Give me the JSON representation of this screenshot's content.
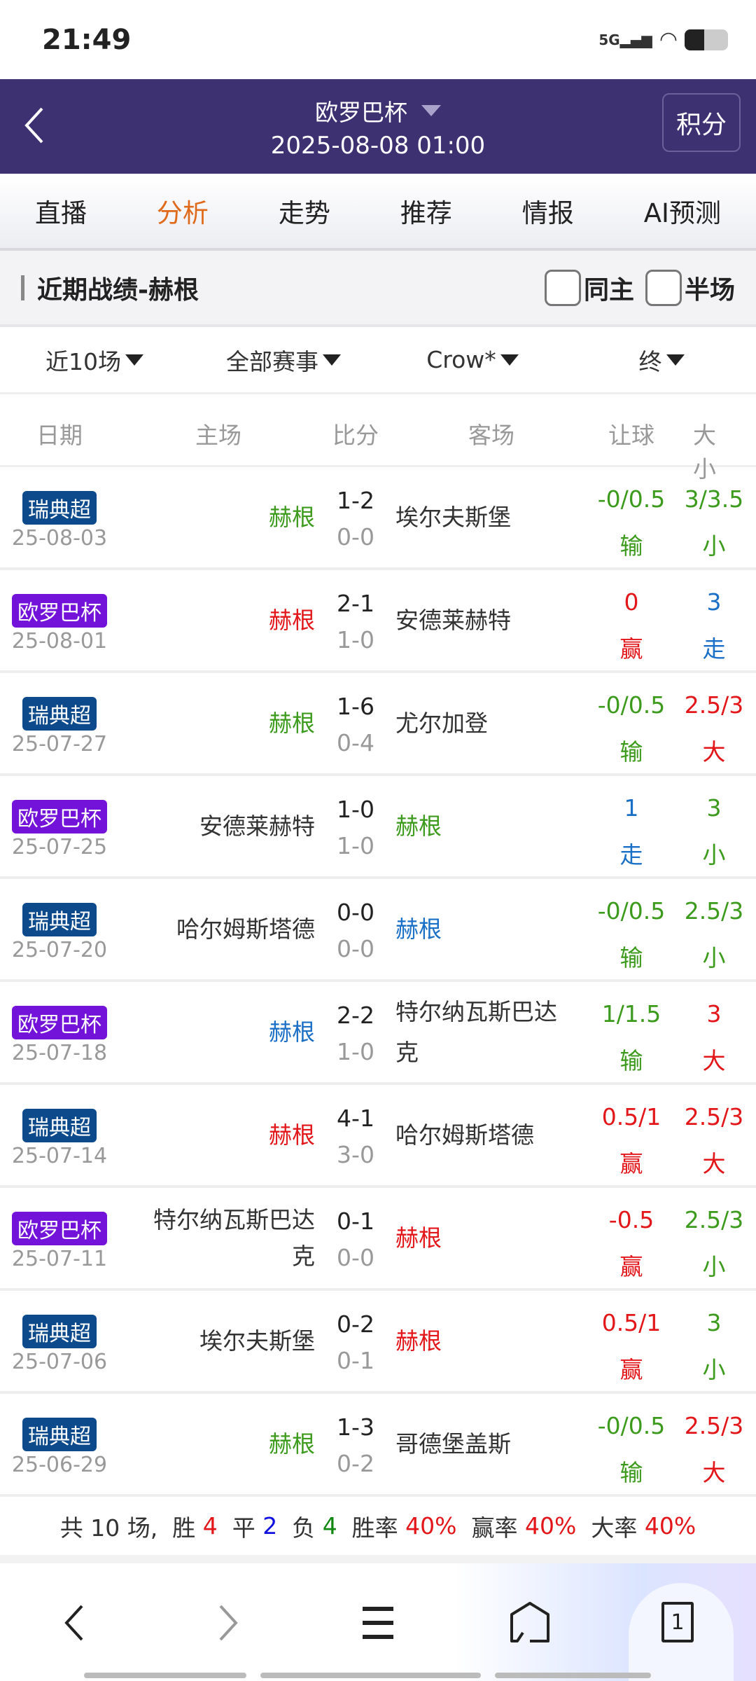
{
  "status": {
    "time": "21:49",
    "network": "5G",
    "icons": [
      "signal-icon",
      "wifi-icon",
      "battery-icon"
    ]
  },
  "header": {
    "title": "欧罗巴杯",
    "datetime": "2025-08-08 01:00",
    "points_button": "积分",
    "bg": "#3d3172"
  },
  "tabs": [
    {
      "label": "直播"
    },
    {
      "label": "分析",
      "active": true
    },
    {
      "label": "走势"
    },
    {
      "label": "推荐"
    },
    {
      "label": "情报"
    },
    {
      "label": "AI预测"
    }
  ],
  "section": {
    "title": "近期战绩-赫根",
    "same_home": "同主",
    "half": "半场",
    "same_home_checked": false,
    "half_checked": false
  },
  "filters": [
    "近10场",
    "全部赛事",
    "Crow*",
    "终"
  ],
  "columns": {
    "date": "日期",
    "home": "主场",
    "score": "比分",
    "away": "客场",
    "handicap": "让球",
    "ou": "大小"
  },
  "colors": {
    "green": "#3c9b1c",
    "red": "#e3161a",
    "blue": "#1a6fc7",
    "dark": "#333333",
    "league_瑞典超": "#0d4a8c",
    "league_欧罗巴杯": "#7312d9"
  },
  "rows": [
    {
      "league": "瑞典超",
      "date": "25-08-03",
      "home": "赫根",
      "home_c": "green",
      "score": "1-2",
      "half": "0-0",
      "away": "埃尔夫斯堡",
      "away_c": "dark",
      "hc": "-0/0.5",
      "hc_r": "输",
      "hc_c": "green",
      "ou": "3/3.5",
      "ou_r": "小",
      "ou_c": "green"
    },
    {
      "league": "欧罗巴杯",
      "date": "25-08-01",
      "home": "赫根",
      "home_c": "red",
      "score": "2-1",
      "half": "1-0",
      "away": "安德莱赫特",
      "away_c": "dark",
      "hc": "0",
      "hc_r": "赢",
      "hc_c": "red",
      "ou": "3",
      "ou_r": "走",
      "ou_c": "blue"
    },
    {
      "league": "瑞典超",
      "date": "25-07-27",
      "home": "赫根",
      "home_c": "green",
      "score": "1-6",
      "half": "0-4",
      "away": "尤尔加登",
      "away_c": "dark",
      "hc": "-0/0.5",
      "hc_r": "输",
      "hc_c": "green",
      "ou": "2.5/3",
      "ou_r": "大",
      "ou_c": "red"
    },
    {
      "league": "欧罗巴杯",
      "date": "25-07-25",
      "home": "安德莱赫特",
      "home_c": "dark",
      "score": "1-0",
      "half": "1-0",
      "away": "赫根",
      "away_c": "green",
      "hc": "1",
      "hc_r": "走",
      "hc_c": "blue",
      "ou": "3",
      "ou_r": "小",
      "ou_c": "green"
    },
    {
      "league": "瑞典超",
      "date": "25-07-20",
      "home": "哈尔姆斯塔德",
      "home_c": "dark",
      "score": "0-0",
      "half": "0-0",
      "away": "赫根",
      "away_c": "blue",
      "hc": "-0/0.5",
      "hc_r": "输",
      "hc_c": "green",
      "ou": "2.5/3",
      "ou_r": "小",
      "ou_c": "green"
    },
    {
      "league": "欧罗巴杯",
      "date": "25-07-18",
      "home": "赫根",
      "home_c": "blue",
      "score": "2-2",
      "half": "1-0",
      "away": "特尔纳瓦斯巴达克",
      "away_c": "dark",
      "hc": "1/1.5",
      "hc_r": "输",
      "hc_c": "green",
      "ou": "3",
      "ou_r": "大",
      "ou_c": "red"
    },
    {
      "league": "瑞典超",
      "date": "25-07-14",
      "home": "赫根",
      "home_c": "red",
      "score": "4-1",
      "half": "3-0",
      "away": "哈尔姆斯塔德",
      "away_c": "dark",
      "hc": "0.5/1",
      "hc_r": "赢",
      "hc_c": "red",
      "ou": "2.5/3",
      "ou_r": "大",
      "ou_c": "red"
    },
    {
      "league": "欧罗巴杯",
      "date": "25-07-11",
      "home": "特尔纳瓦斯巴达克",
      "home_c": "dark",
      "score": "0-1",
      "half": "0-0",
      "away": "赫根",
      "away_c": "red",
      "hc": "-0.5",
      "hc_r": "赢",
      "hc_c": "red",
      "ou": "2.5/3",
      "ou_r": "小",
      "ou_c": "green"
    },
    {
      "league": "瑞典超",
      "date": "25-07-06",
      "home": "埃尔夫斯堡",
      "home_c": "dark",
      "score": "0-2",
      "half": "0-1",
      "away": "赫根",
      "away_c": "red",
      "hc": "0.5/1",
      "hc_r": "赢",
      "hc_c": "red",
      "ou": "3",
      "ou_r": "小",
      "ou_c": "green"
    },
    {
      "league": "瑞典超",
      "date": "25-06-29",
      "home": "赫根",
      "home_c": "green",
      "score": "1-3",
      "half": "0-2",
      "away": "哥德堡盖斯",
      "away_c": "dark",
      "hc": "-0/0.5",
      "hc_r": "输",
      "hc_c": "green",
      "ou": "2.5/3",
      "ou_r": "大",
      "ou_c": "red"
    }
  ],
  "summary": [
    {
      "t": "共 10 场,  ",
      "c": "dark"
    },
    {
      "t": "胜 ",
      "c": "dark"
    },
    {
      "t": "4",
      "c": "red"
    },
    {
      "t": "  平 ",
      "c": "dark"
    },
    {
      "t": "2",
      "c": "blue2"
    },
    {
      "t": "  负 ",
      "c": "dark"
    },
    {
      "t": "4",
      "c": "green2"
    },
    {
      "t": "  胜率 ",
      "c": "dark"
    },
    {
      "t": "40%",
      "c": "red"
    },
    {
      "t": "  赢率 ",
      "c": "dark"
    },
    {
      "t": "40%",
      "c": "red"
    },
    {
      "t": "  大率 ",
      "c": "dark"
    },
    {
      "t": "40%",
      "c": "red"
    }
  ],
  "bottom_nav": {
    "tab_count": "1",
    "icons": [
      "back-icon",
      "forward-icon",
      "menu-icon",
      "home-icon",
      "tabs-icon"
    ]
  }
}
